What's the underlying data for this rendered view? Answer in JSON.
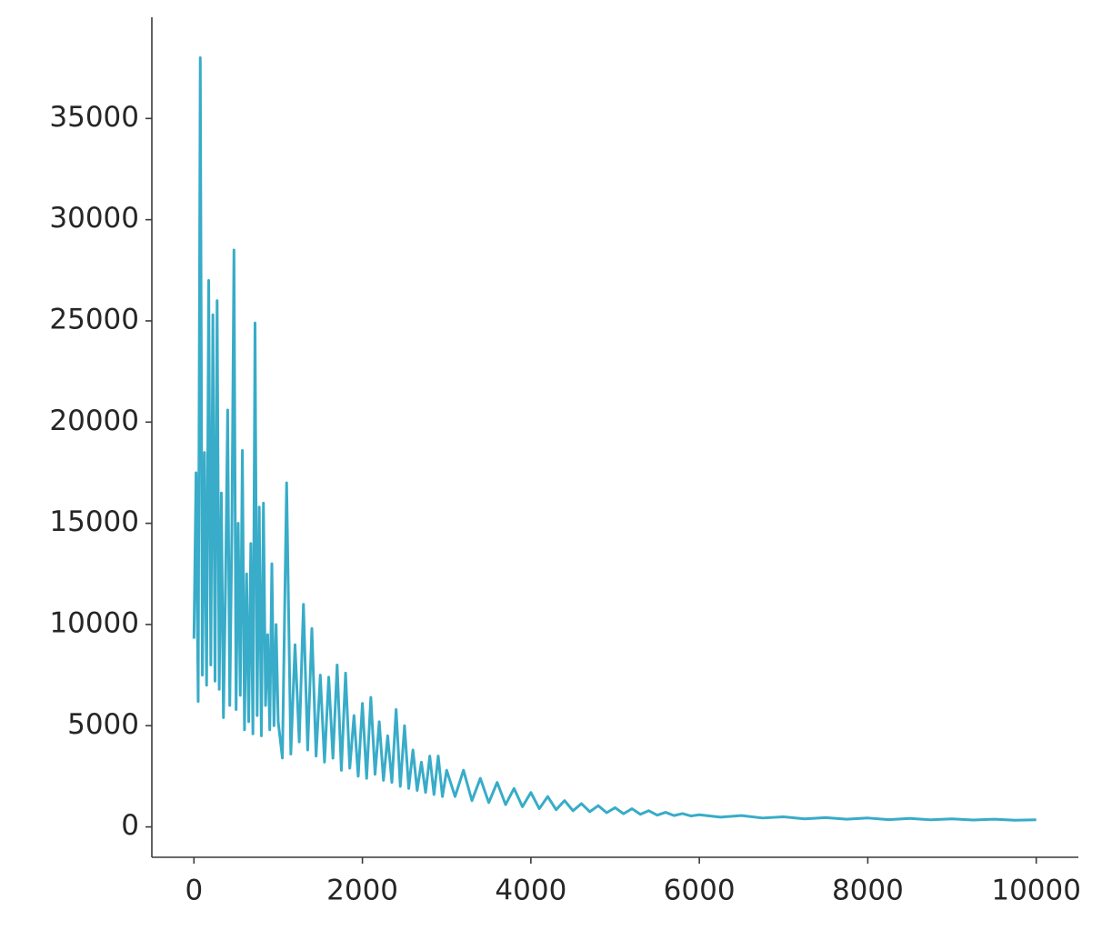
{
  "chart_data": {
    "type": "line",
    "x": [
      0,
      25,
      50,
      75,
      100,
      125,
      150,
      175,
      200,
      225,
      250,
      275,
      300,
      325,
      350,
      375,
      400,
      425,
      450,
      475,
      500,
      525,
      550,
      575,
      600,
      625,
      650,
      675,
      700,
      725,
      750,
      775,
      800,
      825,
      850,
      875,
      900,
      925,
      950,
      975,
      1000,
      1050,
      1100,
      1150,
      1200,
      1250,
      1300,
      1350,
      1400,
      1450,
      1500,
      1550,
      1600,
      1650,
      1700,
      1750,
      1800,
      1850,
      1900,
      1950,
      2000,
      2050,
      2100,
      2150,
      2200,
      2250,
      2300,
      2350,
      2400,
      2450,
      2500,
      2550,
      2600,
      2650,
      2700,
      2750,
      2800,
      2850,
      2900,
      2950,
      3000,
      3100,
      3200,
      3300,
      3400,
      3500,
      3600,
      3700,
      3800,
      3900,
      4000,
      4100,
      4200,
      4300,
      4400,
      4500,
      4600,
      4700,
      4800,
      4900,
      5000,
      5100,
      5200,
      5300,
      5400,
      5500,
      5600,
      5700,
      5800,
      5900,
      6000,
      6250,
      6500,
      6750,
      7000,
      7250,
      7500,
      7750,
      8000,
      8250,
      8500,
      8750,
      9000,
      9250,
      9500,
      9750,
      10000
    ],
    "series": [
      {
        "color": "#38acc8",
        "values": [
          9300,
          17500,
          6200,
          38000,
          7500,
          18500,
          7000,
          27000,
          8000,
          25300,
          7200,
          26000,
          6800,
          16500,
          5400,
          12000,
          20600,
          6000,
          14500,
          28500,
          5800,
          15000,
          6500,
          18600,
          4800,
          12500,
          5200,
          14000,
          4600,
          24900,
          5500,
          15800,
          4500,
          16000,
          6000,
          9500,
          4800,
          13000,
          5000,
          10000,
          5200,
          3400,
          17000,
          3600,
          9000,
          4200,
          11000,
          3800,
          9800,
          3500,
          7500,
          3200,
          7400,
          3400,
          8000,
          2800,
          7600,
          2900,
          5500,
          2500,
          6100,
          2400,
          6400,
          2600,
          5200,
          2300,
          4500,
          2200,
          5800,
          2000,
          5000,
          1900,
          3800,
          1800,
          3200,
          1700,
          3500,
          1600,
          3500,
          1500,
          2800,
          1500,
          2800,
          1300,
          2400,
          1200,
          2200,
          1100,
          1900,
          1000,
          1700,
          900,
          1500,
          850,
          1300,
          800,
          1150,
          750,
          1050,
          700,
          950,
          650,
          900,
          620,
          800,
          580,
          720,
          560,
          660,
          540,
          600,
          480,
          560,
          440,
          500,
          400,
          460,
          380,
          440,
          360,
          420,
          350,
          400,
          340,
          380,
          330,
          350
        ]
      }
    ],
    "xlim": [
      -500,
      10500
    ],
    "ylim": [
      -1500,
      40000
    ],
    "xticks": [
      0,
      2000,
      4000,
      6000,
      8000,
      10000
    ],
    "yticks": [
      0,
      5000,
      10000,
      15000,
      20000,
      25000,
      30000,
      35000
    ]
  }
}
